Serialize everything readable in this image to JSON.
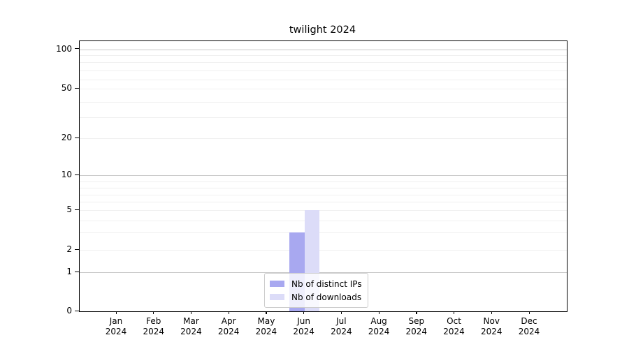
{
  "chart_data": {
    "type": "bar",
    "title": "twilight 2024",
    "categories": [
      "Jan 2024",
      "Feb 2024",
      "Mar 2024",
      "Apr 2024",
      "May 2024",
      "Jun 2024",
      "Jul 2024",
      "Aug 2024",
      "Sep 2024",
      "Oct 2024",
      "Nov 2024",
      "Dec 2024"
    ],
    "x_tick_months": [
      "Jan",
      "Feb",
      "Mar",
      "Apr",
      "May",
      "Jun",
      "Jul",
      "Aug",
      "Sep",
      "Oct",
      "Nov",
      "Dec"
    ],
    "x_tick_year": "2024",
    "series": [
      {
        "name": "Nb of distinct IPs",
        "color": "#a8a8f0",
        "values": [
          0,
          0,
          0,
          0,
          0,
          3,
          0,
          0,
          0,
          0,
          0,
          0
        ]
      },
      {
        "name": "Nb of downloads",
        "color": "#dcdcf8",
        "values": [
          0,
          0,
          0,
          0,
          0,
          5,
          0,
          0,
          0,
          0,
          0,
          0
        ]
      }
    ],
    "y_axis": {
      "scale": "symlog",
      "tick_labels": [
        0,
        1,
        2,
        5,
        10,
        20,
        50,
        100
      ],
      "minor_gridline_values": [
        2,
        3,
        4,
        5,
        6,
        7,
        8,
        9,
        20,
        30,
        40,
        50,
        60,
        70,
        80,
        90
      ],
      "major_gridline_values": [
        1,
        10,
        100
      ],
      "ylim": [
        0,
        115
      ]
    },
    "xlabel": "",
    "ylabel": "",
    "legend_position": "lower center",
    "grid": "horizontal"
  },
  "colors": {
    "bar_distinct_ips": "#a8a8f0",
    "bar_downloads": "#dcdcf8",
    "grid_minor": "#f0f0f0",
    "grid_major": "#c8c8c8",
    "spine": "#000000",
    "legend_border": "#cccccc"
  }
}
